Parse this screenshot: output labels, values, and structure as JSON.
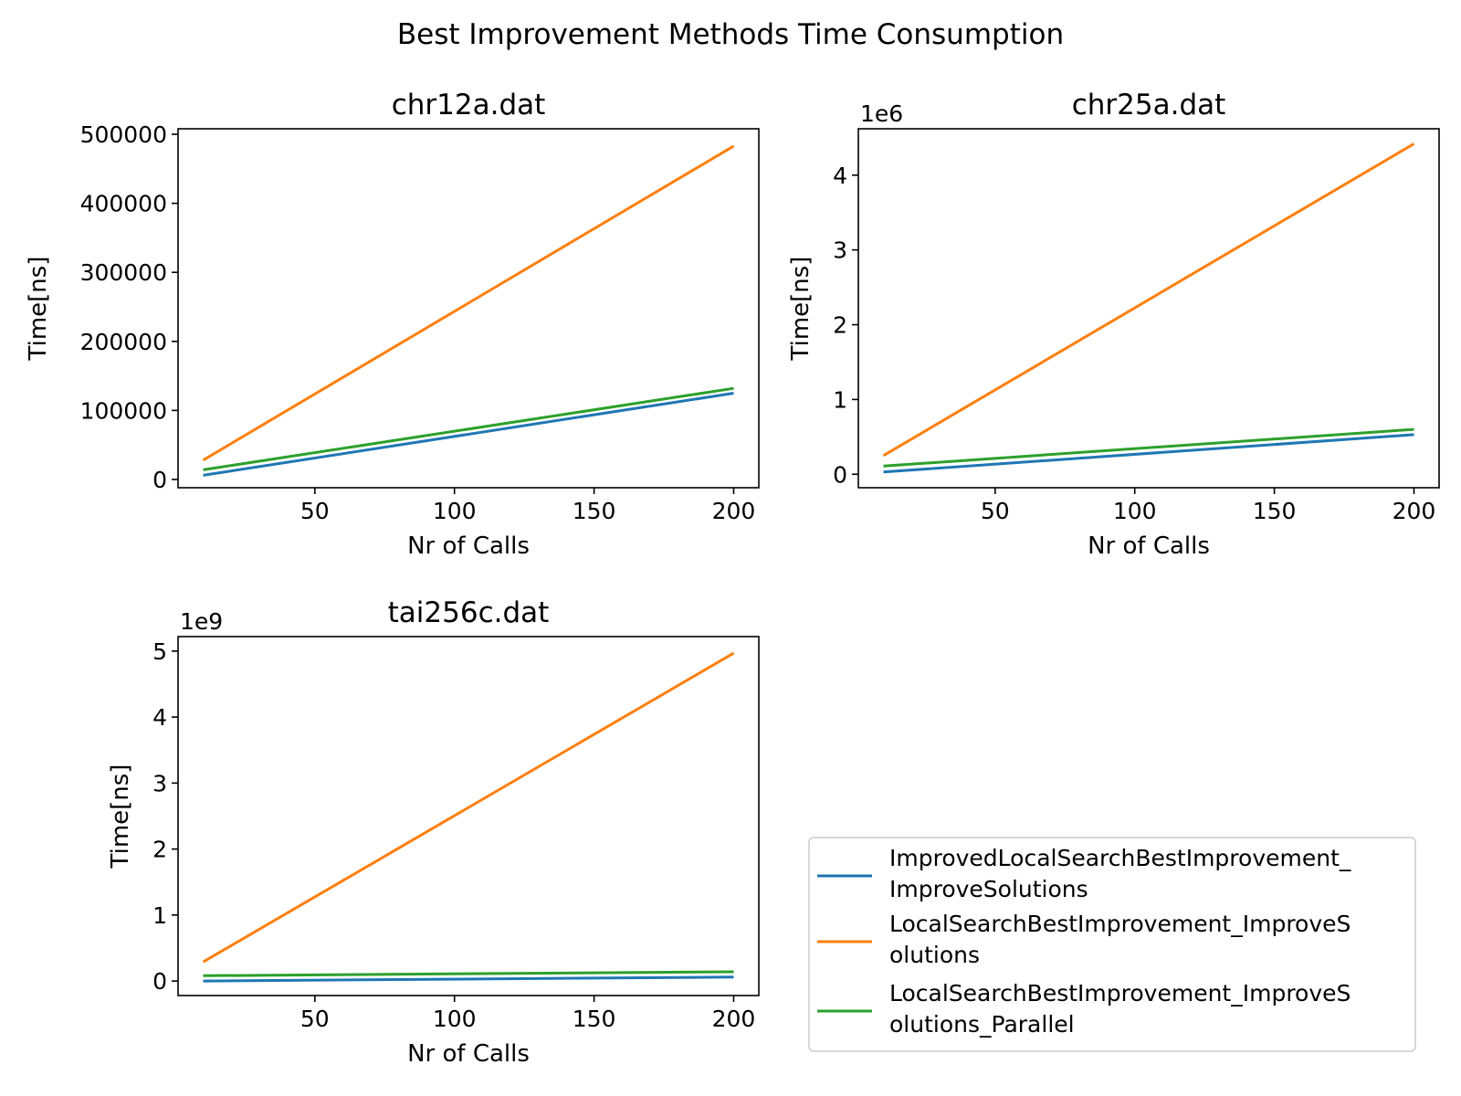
{
  "figure": {
    "suptitle": "Best Improvement Methods Time Consumption"
  },
  "legend": {
    "placement": "lower-right",
    "entries": [
      {
        "lines": [
          "ImprovedLocalSearchBestImprovement_",
          "ImproveSolutions"
        ],
        "color": "#1f77b4"
      },
      {
        "lines": [
          "LocalSearchBestImprovement_ImproveS",
          "olutions"
        ],
        "color": "#ff7f0e"
      },
      {
        "lines": [
          "LocalSearchBestImprovement_ImproveS",
          "olutions_Parallel"
        ],
        "color": "#2ca02c"
      }
    ]
  },
  "chart_data": [
    {
      "type": "line",
      "title": "chr12a.dat",
      "xlabel": "Nr of Calls",
      "ylabel": "Time[ns]",
      "offset_text": "",
      "xlim": [
        1,
        209
      ],
      "ylim": [
        -12000,
        508000
      ],
      "xticks": [
        50,
        100,
        150,
        200
      ],
      "yticks": [
        0,
        100000,
        200000,
        300000,
        400000,
        500000
      ],
      "ytick_labels": [
        "0",
        "100000",
        "200000",
        "300000",
        "400000",
        "500000"
      ],
      "x": [
        10,
        200
      ],
      "series": [
        {
          "color": "#1f77b4",
          "values": [
            6000,
            125000
          ]
        },
        {
          "color": "#ff7f0e",
          "values": [
            28000,
            483000
          ]
        },
        {
          "color": "#2ca02c",
          "values": [
            14000,
            132000
          ]
        }
      ]
    },
    {
      "type": "line",
      "title": "chr25a.dat",
      "xlabel": "Nr of Calls",
      "ylabel": "Time[ns]",
      "offset_text": "1e6",
      "xlim": [
        1,
        209
      ],
      "ylim": [
        -0.18,
        4.62
      ],
      "xticks": [
        50,
        100,
        150,
        200
      ],
      "yticks": [
        0,
        1,
        2,
        3,
        4
      ],
      "ytick_labels": [
        "0",
        "1",
        "2",
        "3",
        "4"
      ],
      "x": [
        10,
        200
      ],
      "series": [
        {
          "color": "#1f77b4",
          "values": [
            0.03,
            0.53
          ]
        },
        {
          "color": "#ff7f0e",
          "values": [
            0.25,
            4.42
          ]
        },
        {
          "color": "#2ca02c",
          "values": [
            0.11,
            0.6
          ]
        }
      ]
    },
    {
      "type": "line",
      "title": "tai256c.dat",
      "xlabel": "Nr of Calls",
      "ylabel": "Time[ns]",
      "offset_text": "1e9",
      "xlim": [
        1,
        209
      ],
      "ylim": [
        -0.22,
        5.22
      ],
      "xticks": [
        50,
        100,
        150,
        200
      ],
      "yticks": [
        0,
        1,
        2,
        3,
        4,
        5
      ],
      "ytick_labels": [
        "0",
        "1",
        "2",
        "3",
        "4",
        "5"
      ],
      "x": [
        10,
        200
      ],
      "series": [
        {
          "color": "#1f77b4",
          "values": [
            0.0,
            0.06
          ]
        },
        {
          "color": "#ff7f0e",
          "values": [
            0.29,
            4.97
          ]
        },
        {
          "color": "#2ca02c",
          "values": [
            0.08,
            0.14
          ]
        }
      ]
    }
  ]
}
